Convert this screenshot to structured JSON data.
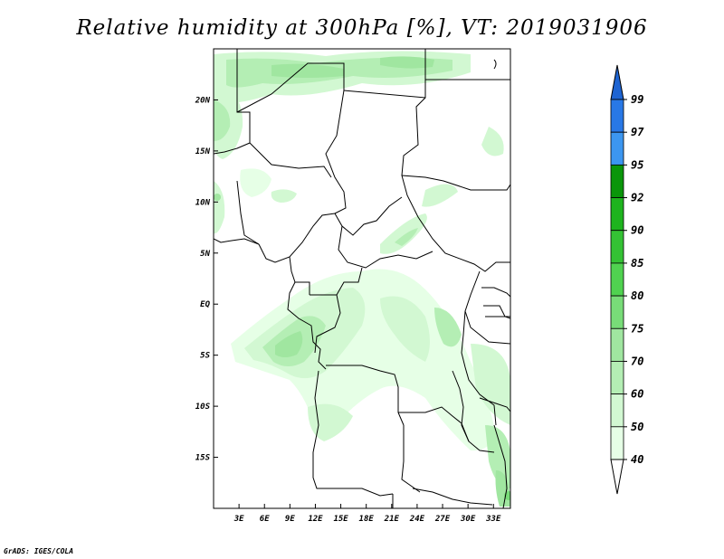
{
  "title": "Relative humidity at 300hPa [%], VT: 2019031906",
  "credit": "GrADS: IGES/COLA",
  "map": {
    "projection": "latlon",
    "lon_range": [
      0,
      35
    ],
    "lat_range": [
      -20,
      25
    ],
    "lon_ticks": [
      {
        "lon": 3,
        "label": "3E"
      },
      {
        "lon": 6,
        "label": "6E"
      },
      {
        "lon": 9,
        "label": "9E"
      },
      {
        "lon": 12,
        "label": "12E"
      },
      {
        "lon": 15,
        "label": "15E"
      },
      {
        "lon": 18,
        "label": "18E"
      },
      {
        "lon": 21,
        "label": "21E"
      },
      {
        "lon": 24,
        "label": "24E"
      },
      {
        "lon": 27,
        "label": "27E"
      },
      {
        "lon": 30,
        "label": "30E"
      },
      {
        "lon": 33,
        "label": "33E"
      }
    ],
    "lat_ticks": [
      {
        "lat": 20,
        "label": "20N"
      },
      {
        "lat": 15,
        "label": "15N"
      },
      {
        "lat": 10,
        "label": "10N"
      },
      {
        "lat": 5,
        "label": "5N"
      },
      {
        "lat": 0,
        "label": "EQ"
      },
      {
        "lat": -5,
        "label": "5S"
      },
      {
        "lat": -10,
        "label": "10S"
      },
      {
        "lat": -15,
        "label": "15S"
      }
    ]
  },
  "colorbar": {
    "levels": [
      "99",
      "97",
      "95",
      "92",
      "90",
      "85",
      "80",
      "75",
      "70",
      "60",
      "50",
      "40"
    ],
    "colors": [
      "#1e64d2",
      "#2878e6",
      "#3c96f0",
      "#0a960a",
      "#1eb41e",
      "#34c234",
      "#50d250",
      "#78dc78",
      "#a0e6a0",
      "#b4eeb4",
      "#d2f8d2",
      "#e6ffe6",
      "#ffffff"
    ],
    "top_triangle_color": "#1e64d2",
    "bottom_triangle_color": "#ffffff"
  }
}
